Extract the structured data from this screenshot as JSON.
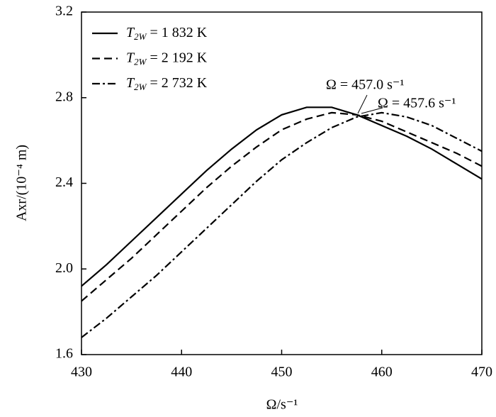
{
  "chart_data": {
    "type": "line",
    "x_label": "Ω/s⁻¹",
    "y_label": "Axr/(10⁻⁴ m)",
    "x": [
      430,
      432.5,
      435,
      437.5,
      440,
      442.5,
      445,
      447.5,
      450,
      452.5,
      455,
      457.5,
      460,
      462.5,
      465,
      467.5,
      470
    ],
    "series": [
      {
        "name": "T2W = 1 832 K",
        "color": "#000000",
        "dash": "solid",
        "values": [
          1.92,
          2.02,
          2.13,
          2.24,
          2.35,
          2.46,
          2.56,
          2.65,
          2.72,
          2.755,
          2.755,
          2.72,
          2.67,
          2.62,
          2.56,
          2.49,
          2.42
        ]
      },
      {
        "name": "T2W = 2 192 K",
        "color": "#000000",
        "dash": "dashed",
        "values": [
          1.85,
          1.95,
          2.05,
          2.16,
          2.27,
          2.38,
          2.48,
          2.57,
          2.65,
          2.7,
          2.73,
          2.72,
          2.69,
          2.64,
          2.59,
          2.54,
          2.48
        ]
      },
      {
        "name": "T2W = 2 732 K",
        "color": "#000000",
        "dash": "dashdot",
        "values": [
          1.68,
          1.77,
          1.87,
          1.97,
          2.08,
          2.19,
          2.3,
          2.41,
          2.51,
          2.59,
          2.66,
          2.71,
          2.73,
          2.71,
          2.67,
          2.61,
          2.55
        ]
      }
    ],
    "xlim": [
      430,
      470
    ],
    "xticks": [
      430,
      440,
      450,
      460,
      470
    ],
    "ylim": [
      1.6,
      3.2
    ],
    "yticks": [
      1.6,
      {
        "value": 2,
        "label": "2.0"
      },
      2.4,
      2.8,
      3.2
    ],
    "legend": "upper-left",
    "annotations": [
      "Ω = 457.0 s⁻¹",
      "Ω = 457.6 s⁻¹"
    ]
  }
}
